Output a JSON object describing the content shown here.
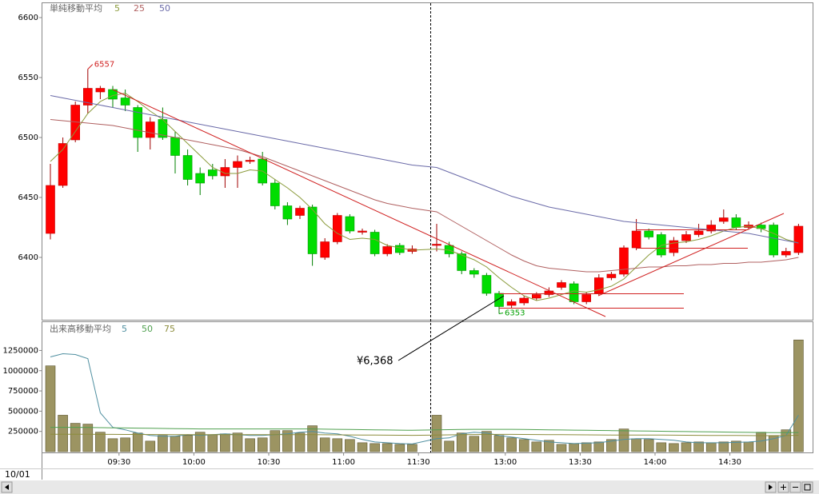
{
  "chart_data": [
    {
      "type": "candlestick",
      "title": "単純移動平均",
      "open": [
        6420,
        6460,
        6498,
        6527,
        6538,
        6540,
        6533,
        6525,
        6500,
        6515,
        6500,
        6485,
        6470,
        6473,
        6468,
        6475,
        6480,
        6482,
        6462,
        6443,
        6435,
        6442,
        6400,
        6413,
        6434,
        6421,
        6421,
        6403,
        6410,
        6405,
        6410,
        6410,
        6403,
        6389,
        6385,
        6370,
        6360,
        6362,
        6366,
        6369,
        6375,
        6378,
        6363,
        6370,
        6383,
        6386,
        6408,
        6422,
        6419,
        6404,
        6414,
        6419,
        6422,
        6430,
        6433,
        6425,
        6427,
        6427,
        6402,
        6404
      ],
      "high": [
        6478,
        6500,
        6530,
        6557,
        6543,
        6543,
        6540,
        6527,
        6517,
        6525,
        6505,
        6490,
        6475,
        6478,
        6482,
        6485,
        6484,
        6488,
        6465,
        6446,
        6443,
        6444,
        6416,
        6437,
        6436,
        6424,
        6423,
        6411,
        6412,
        6410,
        6428,
        6413,
        6405,
        6391,
        6387,
        6372,
        6365,
        6368,
        6371,
        6375,
        6381,
        6380,
        6371,
        6386,
        6388,
        6410,
        6432,
        6424,
        6421,
        6417,
        6422,
        6428,
        6431,
        6440,
        6436,
        6430,
        6429,
        6429,
        6408,
        6428
      ],
      "low": [
        6415,
        6458,
        6496,
        6520,
        6532,
        6525,
        6522,
        6488,
        6490,
        6498,
        6470,
        6460,
        6452,
        6465,
        6458,
        6458,
        6478,
        6460,
        6440,
        6427,
        6432,
        6393,
        6398,
        6411,
        6420,
        6419,
        6401,
        6401,
        6402,
        6403,
        6405,
        6400,
        6386,
        6383,
        6368,
        6353,
        6358,
        6360,
        6364,
        6367,
        6373,
        6361,
        6361,
        6368,
        6381,
        6384,
        6406,
        6415,
        6400,
        6401,
        6412,
        6417,
        6420,
        6428,
        6423,
        6423,
        6421,
        6400,
        6400,
        6402
      ],
      "close": [
        6460,
        6495,
        6527,
        6541,
        6541,
        6532,
        6527,
        6500,
        6513,
        6500,
        6485,
        6465,
        6462,
        6468,
        6475,
        6480,
        6481,
        6462,
        6443,
        6432,
        6441,
        6403,
        6413,
        6435,
        6422,
        6422,
        6403,
        6409,
        6404,
        6407,
        6411,
        6403,
        6389,
        6386,
        6370,
        6359,
        6363,
        6366,
        6369,
        6372,
        6379,
        6363,
        6369,
        6383,
        6386,
        6408,
        6422,
        6417,
        6402,
        6414,
        6419,
        6422,
        6427,
        6433,
        6425,
        6427,
        6424,
        6402,
        6405,
        6426
      ],
      "up_color": "#ff0000",
      "down_color": "#00dd00",
      "ylim": [
        6348,
        6612
      ],
      "yticks": [
        6400,
        6450,
        6500,
        6550,
        6600
      ],
      "series": [
        {
          "name": "5",
          "color": "#8a9a3a",
          "values": [
            6480,
            6490,
            6505,
            6520,
            6530,
            6535,
            6537,
            6530,
            6522,
            6515,
            6505,
            6495,
            6485,
            6475,
            6470,
            6470,
            6473,
            6472,
            6465,
            6458,
            6450,
            6440,
            6428,
            6420,
            6415,
            6416,
            6415,
            6410,
            6408,
            6406,
            6407,
            6406,
            6402,
            6398,
            6392,
            6383,
            6375,
            6368,
            6364,
            6366,
            6369,
            6372,
            6371,
            6373,
            6376,
            6382,
            6392,
            6402,
            6410,
            6412,
            6413,
            6415,
            6418,
            6422,
            6425,
            6426,
            6424,
            6420,
            6415,
            6412
          ]
        },
        {
          "name": "25",
          "color": "#b06060",
          "values": [
            6515,
            6514,
            6513,
            6512,
            6511,
            6510,
            6508,
            6506,
            6504,
            6502,
            6500,
            6498,
            6496,
            6494,
            6492,
            6490,
            6487,
            6484,
            6480,
            6476,
            6472,
            6468,
            6464,
            6460,
            6456,
            6452,
            6448,
            6445,
            6443,
            6441,
            6438,
            6432,
            6426,
            6420,
            6414,
            6408,
            6402,
            6397,
            6393,
            6391,
            6390,
            6389,
            6388,
            6388,
            6389,
            6390,
            6391,
            6392,
            6392,
            6393,
            6393,
            6394,
            6394,
            6395,
            6395,
            6396,
            6396,
            6397,
            6398,
            6400
          ]
        },
        {
          "name": "50",
          "color": "#6a6aa8",
          "values": [
            6535,
            6533,
            6531,
            6529,
            6527,
            6525,
            6523,
            6521,
            6519,
            6517,
            6515,
            6513,
            6511,
            6509,
            6507,
            6505,
            6503,
            6501,
            6499,
            6497,
            6495,
            6493,
            6491,
            6489,
            6487,
            6485,
            6483,
            6481,
            6479,
            6477,
            6475,
            6471,
            6467,
            6463,
            6459,
            6455,
            6451,
            6448,
            6445,
            6442,
            6440,
            6438,
            6436,
            6434,
            6432,
            6430,
            6429,
            6428,
            6427,
            6426,
            6425,
            6424,
            6423,
            6422,
            6421,
            6420,
            6418,
            6416,
            6414,
            6412
          ]
        }
      ],
      "high_label": 6557,
      "low_label": 6353,
      "price_label": {
        "value": 6368,
        "label": "¥6,368"
      }
    },
    {
      "type": "bar",
      "title": "出来高移動平均",
      "color": "#9c9462",
      "categories": [
        null,
        null,
        null,
        null,
        null,
        "09:30",
        null,
        null,
        null,
        null,
        null,
        "10:00",
        null,
        null,
        null,
        null,
        null,
        "10:30",
        null,
        null,
        null,
        null,
        null,
        "11:00",
        null,
        null,
        null,
        null,
        null,
        "11:30",
        null,
        null,
        null,
        null,
        null,
        "13:00",
        null,
        null,
        null,
        null,
        null,
        "13:30",
        null,
        null,
        null,
        null,
        null,
        "14:00",
        null,
        null,
        null,
        null,
        null,
        "14:30",
        null,
        null,
        null,
        null,
        null,
        null
      ],
      "values": [
        1060000,
        450000,
        350000,
        340000,
        240000,
        160000,
        170000,
        230000,
        130000,
        200000,
        190000,
        200000,
        240000,
        210000,
        220000,
        230000,
        160000,
        170000,
        260000,
        260000,
        230000,
        320000,
        170000,
        160000,
        150000,
        110000,
        100000,
        100000,
        90000,
        90000,
        450000,
        130000,
        230000,
        190000,
        250000,
        200000,
        170000,
        150000,
        120000,
        140000,
        90000,
        100000,
        110000,
        120000,
        150000,
        280000,
        160000,
        150000,
        110000,
        100000,
        110000,
        120000,
        110000,
        120000,
        130000,
        120000,
        240000,
        200000,
        270000,
        1380000
      ],
      "ylim": [
        0,
        1600000
      ],
      "yticks": [
        250000,
        500000,
        750000,
        1000000,
        1250000
      ],
      "series": [
        {
          "name": "5",
          "color": "#4f8fa0",
          "values": [
            1170000,
            1210000,
            1200000,
            1150000,
            480000,
            300000,
            270000,
            230000,
            200000,
            190000,
            190000,
            210000,
            200000,
            210000,
            220000,
            210000,
            200000,
            200000,
            210000,
            220000,
            240000,
            250000,
            230000,
            220000,
            190000,
            150000,
            120000,
            110000,
            100000,
            95000,
            160000,
            170000,
            220000,
            240000,
            230000,
            200000,
            180000,
            160000,
            140000,
            120000,
            110000,
            100000,
            105000,
            110000,
            130000,
            150000,
            160000,
            160000,
            150000,
            140000,
            120000,
            110000,
            110000,
            110000,
            115000,
            120000,
            130000,
            160000,
            200000,
            450000
          ]
        },
        {
          "name": "50",
          "color": "#4fa04f",
          "values": [
            300000,
            300000,
            300000,
            298000,
            296000,
            294000,
            292000,
            290000,
            288000,
            286000,
            284000,
            282000,
            280000,
            280000,
            280000,
            280000,
            280000,
            280000,
            280000,
            280000,
            280000,
            280000,
            278000,
            276000,
            274000,
            272000,
            270000,
            268000,
            266000,
            264000,
            270000,
            272000,
            274000,
            276000,
            276000,
            276000,
            276000,
            274000,
            272000,
            270000,
            268000,
            266000,
            264000,
            262000,
            260000,
            258000,
            256000,
            254000,
            252000,
            250000,
            248000,
            246000,
            244000,
            242000,
            240000,
            238000,
            236000,
            234000,
            234000,
            236000
          ]
        },
        {
          "name": "75",
          "color": "#8c8c3c",
          "values": [
            215000,
            215000,
            214000,
            214000,
            213000,
            213000,
            212000,
            212000,
            211000,
            211000,
            210000,
            210000,
            210000,
            210000,
            210000,
            210000,
            210000,
            210000,
            210000,
            210000,
            210000,
            209000,
            208000,
            207000,
            206000,
            205000,
            204000,
            203000,
            202000,
            201000,
            205000,
            207000,
            209000,
            211000,
            212000,
            213000,
            213000,
            212000,
            211000,
            210000,
            209000,
            208000,
            207000,
            206000,
            205000,
            205000,
            205000,
            205000,
            204000,
            203000,
            202000,
            201000,
            200000,
            200000,
            200000,
            199000,
            198000,
            198000,
            199000,
            202000
          ]
        }
      ],
      "date": "10/01"
    }
  ]
}
